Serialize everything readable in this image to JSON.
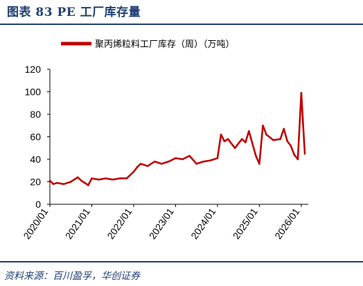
{
  "figure": {
    "title": "图表 83 PE 工厂库存量",
    "source": "资料来源：百川盈孚，华创证券"
  },
  "colors": {
    "line": "#c00000",
    "title": "#1f3f74",
    "axis": "#000000"
  },
  "chart_data": {
    "type": "line",
    "title": "",
    "xlabel": "",
    "ylabel": "",
    "ylim": [
      0,
      120
    ],
    "yticks": [
      0,
      20,
      40,
      60,
      80,
      100,
      120
    ],
    "xticks": [
      "2020/01",
      "2021/01",
      "2022/01",
      "2023/01",
      "2024/01",
      "2025/01",
      "2026/01"
    ],
    "grid": false,
    "legend_position": "top-center",
    "series": [
      {
        "name": "聚丙烯粒料工厂库存（周）（万吨）",
        "x": [
          "2020/01",
          "2020/02",
          "2020/03",
          "2020/05",
          "2020/07",
          "2020/09",
          "2020/10",
          "2020/11",
          "2020/12",
          "2021/01",
          "2021/03",
          "2021/05",
          "2021/07",
          "2021/09",
          "2021/11",
          "2022/01",
          "2022/02",
          "2022/03",
          "2022/05",
          "2022/07",
          "2022/09",
          "2022/11",
          "2023/01",
          "2023/03",
          "2023/05",
          "2023/07",
          "2023/09",
          "2023/11",
          "2024/01",
          "2024/02",
          "2024/03",
          "2024/04",
          "2024/06",
          "2024/08",
          "2024/09",
          "2024/10",
          "2024/12",
          "2025/01",
          "2025/02",
          "2025/03",
          "2025/05",
          "2025/07",
          "2025/08",
          "2025/09",
          "2025/10",
          "2025/11",
          "2025/12",
          "2026/01",
          "2026/02"
        ],
        "values": [
          21,
          18,
          19,
          18,
          20,
          24,
          21,
          19,
          17,
          23,
          22,
          23,
          22,
          23,
          23,
          29,
          33,
          36,
          34,
          38,
          36,
          38,
          41,
          40,
          43,
          36,
          38,
          39,
          41,
          62,
          56,
          58,
          50,
          58,
          55,
          65,
          43,
          36,
          70,
          62,
          57,
          58,
          67,
          56,
          52,
          44,
          40,
          99,
          45
        ]
      }
    ]
  }
}
